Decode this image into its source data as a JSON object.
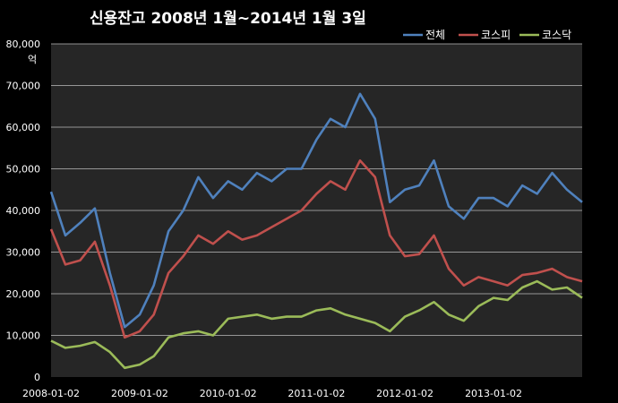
{
  "chart_data": {
    "type": "line",
    "title": "신용잔고 2008년 1월~2014년 1월 3일",
    "ylabel": "억",
    "xlabel": "",
    "ylim": [
      0,
      80000
    ],
    "y_ticks": [
      "0",
      "10,000",
      "20,000",
      "30,000",
      "40,000",
      "50,000",
      "60,000",
      "70,000",
      "80,000"
    ],
    "x_ticks": [
      "2008-01-02",
      "2009-01-02",
      "2010-01-02",
      "2011-01-02",
      "2012-01-02",
      "2013-01-02"
    ],
    "grid": "horizontal",
    "legend_position": "top-right",
    "x": [
      "2008-01-02",
      "2008-03-01",
      "2008-05-01",
      "2008-07-01",
      "2008-09-01",
      "2008-11-01",
      "2009-01-02",
      "2009-03-01",
      "2009-05-01",
      "2009-07-01",
      "2009-09-01",
      "2009-11-01",
      "2010-01-02",
      "2010-03-01",
      "2010-05-01",
      "2010-07-01",
      "2010-09-01",
      "2010-11-01",
      "2011-01-02",
      "2011-03-01",
      "2011-05-01",
      "2011-07-01",
      "2011-09-01",
      "2011-11-01",
      "2012-01-02",
      "2012-03-01",
      "2012-05-01",
      "2012-07-01",
      "2012-09-01",
      "2012-11-01",
      "2013-01-02",
      "2013-03-01",
      "2013-05-01",
      "2013-07-01",
      "2013-09-01",
      "2013-11-01",
      "2014-01-03"
    ],
    "series": [
      {
        "name": "전체",
        "color": "#4f81bd",
        "values": [
          44500,
          34000,
          37000,
          40500,
          25000,
          12000,
          15000,
          22000,
          35000,
          40000,
          48000,
          43000,
          47000,
          45000,
          49000,
          47000,
          50000,
          50000,
          57000,
          62000,
          60000,
          68000,
          62000,
          42000,
          45000,
          46000,
          52000,
          41000,
          38000,
          43000,
          43000,
          41000,
          46000,
          44000,
          49000,
          45000,
          42000
        ]
      },
      {
        "name": "코스피",
        "color": "#c0504d",
        "values": [
          35500,
          27000,
          28000,
          32500,
          22000,
          9500,
          11000,
          15000,
          25000,
          29000,
          34000,
          32000,
          35000,
          33000,
          34000,
          36000,
          38000,
          40000,
          44000,
          47000,
          45000,
          52000,
          48000,
          34000,
          29000,
          29500,
          34000,
          26000,
          22000,
          24000,
          23000,
          22000,
          24500,
          25000,
          26000,
          24000,
          23000
        ]
      },
      {
        "name": "코스닥",
        "color": "#9bbb59",
        "values": [
          8700,
          7000,
          7500,
          8400,
          6000,
          2200,
          3000,
          5000,
          9500,
          10500,
          11000,
          10000,
          14000,
          14500,
          15000,
          14000,
          14500,
          14500,
          16000,
          16500,
          15000,
          14000,
          13000,
          11000,
          14500,
          16000,
          18000,
          15000,
          13500,
          17000,
          19000,
          18500,
          21500,
          23000,
          21000,
          21500,
          19000
        ]
      }
    ]
  }
}
